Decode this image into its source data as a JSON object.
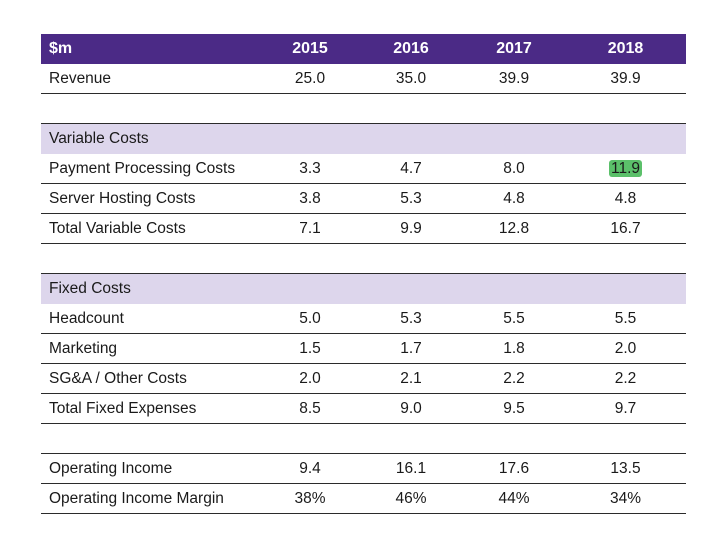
{
  "header": {
    "label": "$m",
    "years": [
      "2015",
      "2016",
      "2017",
      "2018"
    ]
  },
  "revenue": {
    "label": "Revenue",
    "values": [
      "25.0",
      "35.0",
      "39.9",
      "39.9"
    ]
  },
  "variable_costs": {
    "title": "Variable Costs",
    "rows": [
      {
        "label": "Payment Processing Costs",
        "values": [
          "3.3",
          "4.7",
          "8.0",
          "11.9"
        ]
      },
      {
        "label": "Server Hosting Costs",
        "values": [
          "3.8",
          "5.3",
          "4.8",
          "4.8"
        ]
      },
      {
        "label": "Total Variable Costs",
        "values": [
          "7.1",
          "9.9",
          "12.8",
          "16.7"
        ]
      }
    ]
  },
  "fixed_costs": {
    "title": "Fixed Costs",
    "rows": [
      {
        "label": "Headcount",
        "values": [
          "5.0",
          "5.3",
          "5.5",
          "5.5"
        ]
      },
      {
        "label": "Marketing",
        "values": [
          "1.5",
          "1.7",
          "1.8",
          "2.0"
        ]
      },
      {
        "label": "SG&A / Other Costs",
        "values": [
          "2.0",
          "2.1",
          "2.2",
          "2.2"
        ]
      },
      {
        "label": "Total Fixed Expenses",
        "values": [
          "8.5",
          "9.0",
          "9.5",
          "9.7"
        ]
      }
    ]
  },
  "operating": {
    "rows": [
      {
        "label": "Operating Income",
        "values": [
          "9.4",
          "16.1",
          "17.6",
          "13.5"
        ]
      },
      {
        "label": "Operating Income Margin",
        "values": [
          "38%",
          "46%",
          "44%",
          "34%"
        ]
      }
    ]
  },
  "colors": {
    "header_bg": "#4b2a86",
    "section_bg": "#ddd6ec",
    "highlight": "#5bc06a"
  }
}
